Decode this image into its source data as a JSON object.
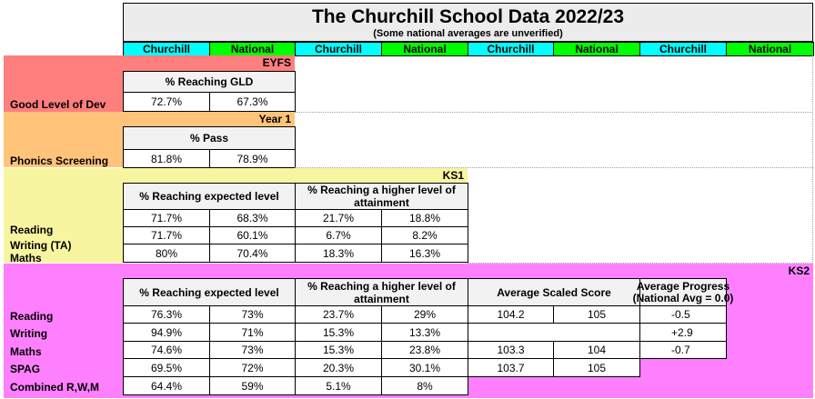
{
  "title": "The Churchill School Data 2022/23",
  "subtitle": "(Some national averages are unverified)",
  "col_headers": [
    "Churchill",
    "National",
    "Churchill",
    "National",
    "Churchill",
    "National",
    "Churchill",
    "National"
  ],
  "colors": {
    "churchill": "#00ffff",
    "national": "#00ff00",
    "eyfs": "#ff7f7f",
    "year1": "#ffc47a",
    "ks1": "#f8f5a0",
    "ks2": "#ff80ff"
  },
  "eyfs": {
    "title": "EYFS",
    "row_label": "Good Level of Dev",
    "header": "% Reaching GLD",
    "churchill": "72.7%",
    "national": "67.3%"
  },
  "year1": {
    "title": "Year 1",
    "row_label": "Phonics Screening",
    "header": "% Pass",
    "churchill": "81.8%",
    "national": "78.9%"
  },
  "ks1": {
    "title": "KS1",
    "header_expected": "% Reaching expected level",
    "header_higher": "% Reaching a higher level of attainment",
    "rows": [
      {
        "label": "Reading",
        "vals": [
          "71.7%",
          "68.3%",
          "21.7%",
          "18.8%"
        ]
      },
      {
        "label": "Writing (TA)",
        "vals": [
          "71.7%",
          "60.1%",
          "6.7%",
          "8.2%"
        ]
      },
      {
        "label": "Maths",
        "vals": [
          "80%",
          "70.4%",
          "18.3%",
          "16.3%"
        ]
      }
    ]
  },
  "ks2": {
    "title": "KS2",
    "header_expected": "% Reaching expected level",
    "header_higher": "% Reaching a higher level of attainment",
    "header_scaled": "Average Scaled Score",
    "header_progress": "Average Progress",
    "header_progress_note": "(National Avg = 0.0)",
    "rows": [
      {
        "label": "Reading",
        "vals": [
          "76.3%",
          "73%",
          "23.7%",
          "29%",
          "104.2",
          "105",
          "-0.5"
        ]
      },
      {
        "label": "Writing",
        "vals": [
          "94.9%",
          "71%",
          "15.3%",
          "13.3%",
          "",
          "",
          "+2.9"
        ]
      },
      {
        "label": "Maths",
        "vals": [
          "74.6%",
          "73%",
          "15.3%",
          "23.8%",
          "103.3",
          "104",
          "-0.7"
        ]
      },
      {
        "label": "SPAG",
        "vals": [
          "69.5%",
          "72%",
          "20.3%",
          "30.1%",
          "103.7",
          "105",
          ""
        ]
      },
      {
        "label": "Combined R,W,M",
        "vals": [
          "64.4%",
          "59%",
          "5.1%",
          "8%",
          "",
          "",
          ""
        ]
      }
    ]
  }
}
